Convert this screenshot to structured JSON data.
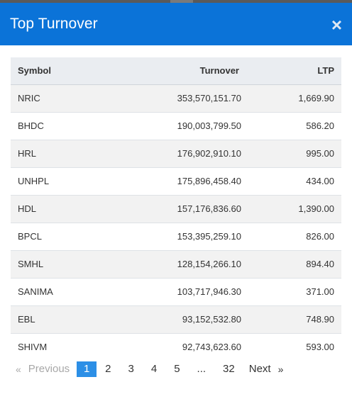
{
  "dialog": {
    "title": "Top Turnover",
    "close_symbol": "×"
  },
  "table": {
    "headers": {
      "symbol": "Symbol",
      "turnover": "Turnover",
      "ltp": "LTP"
    },
    "rows": [
      {
        "symbol": "NRIC",
        "turnover": "353,570,151.70",
        "ltp": "1,669.90"
      },
      {
        "symbol": "BHDC",
        "turnover": "190,003,799.50",
        "ltp": "586.20"
      },
      {
        "symbol": "HRL",
        "turnover": "176,902,910.10",
        "ltp": "995.00"
      },
      {
        "symbol": "UNHPL",
        "turnover": "175,896,458.40",
        "ltp": "434.00"
      },
      {
        "symbol": "HDL",
        "turnover": "157,176,836.60",
        "ltp": "1,390.00"
      },
      {
        "symbol": "BPCL",
        "turnover": "153,395,259.10",
        "ltp": "826.00"
      },
      {
        "symbol": "SMHL",
        "turnover": "128,154,266.10",
        "ltp": "894.40"
      },
      {
        "symbol": "SANIMA",
        "turnover": "103,717,946.30",
        "ltp": "371.00"
      },
      {
        "symbol": "EBL",
        "turnover": "93,152,532.80",
        "ltp": "748.90"
      },
      {
        "symbol": "SHIVM",
        "turnover": "92,743,623.60",
        "ltp": "593.00"
      }
    ]
  },
  "pagination": {
    "prev_arrow": "«",
    "prev_label": "Previous",
    "pages": [
      "1",
      "2",
      "3",
      "4",
      "5",
      "...",
      "32"
    ],
    "active_page": "1",
    "next_label": "Next",
    "next_arrow": "»"
  },
  "colors": {
    "header_bg": "#0b73d8",
    "active_page_bg": "#2c8fe6"
  }
}
